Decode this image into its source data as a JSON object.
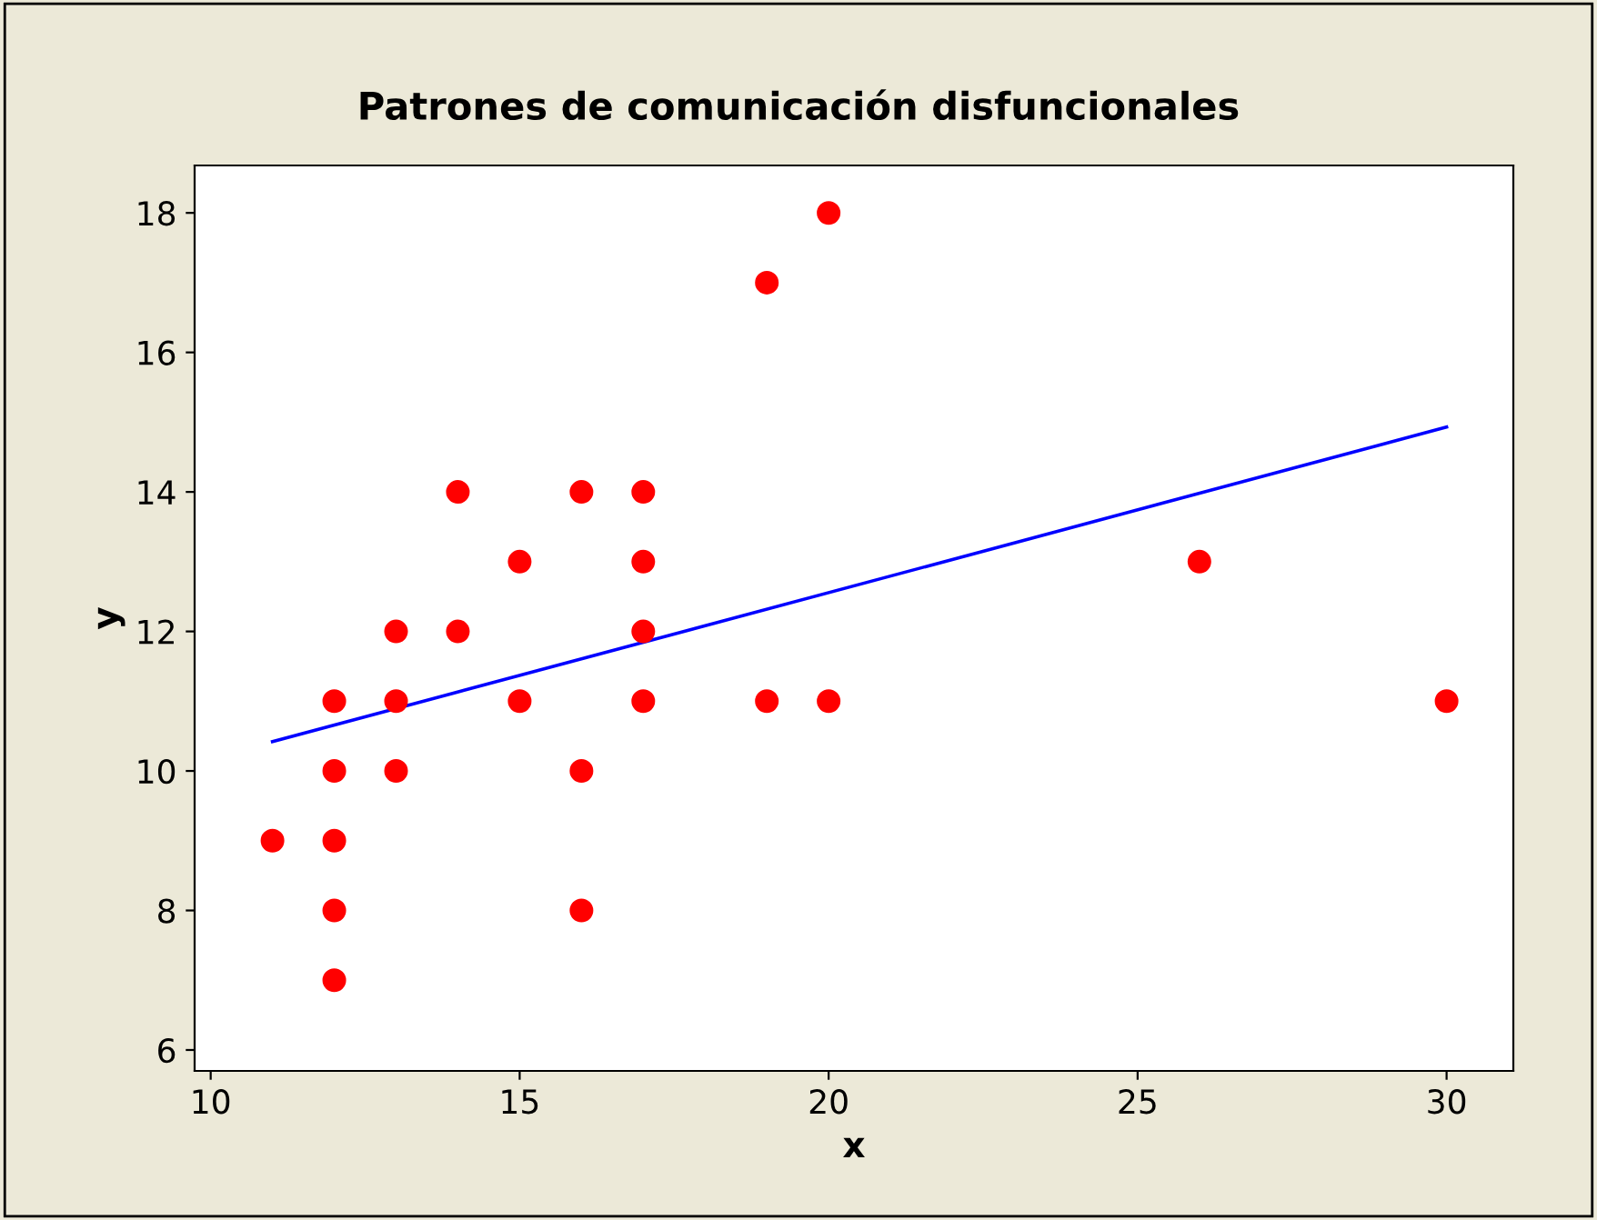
{
  "chart_data": {
    "type": "scatter",
    "title": "Patrones de comunicación disfuncionales",
    "xlabel": "x",
    "ylabel": "y",
    "xlim": [
      9.74,
      31.08
    ],
    "ylim": [
      5.7,
      18.68
    ],
    "xticks": [
      10,
      15,
      20,
      25,
      30
    ],
    "yticks": [
      6,
      8,
      10,
      12,
      14,
      16,
      18
    ],
    "grid": false,
    "series": [
      {
        "marker": "circle",
        "color": "#ff0000",
        "x": [
          11,
          12,
          12,
          12,
          12,
          12,
          13,
          13,
          13,
          14,
          14,
          15,
          15,
          16,
          16,
          16,
          17,
          17,
          17,
          17,
          19,
          19,
          20,
          20,
          26,
          30
        ],
        "values": [
          9,
          11,
          10,
          9,
          8,
          7,
          12,
          11,
          10,
          14,
          12,
          13,
          11,
          14,
          10,
          8,
          14,
          13,
          12,
          11,
          17,
          11,
          18,
          11,
          13,
          11
        ]
      },
      {
        "type": "line",
        "marker": "none",
        "color": "#0000ff",
        "x": [
          11,
          30
        ],
        "values": [
          10.42,
          14.93
        ]
      }
    ]
  }
}
